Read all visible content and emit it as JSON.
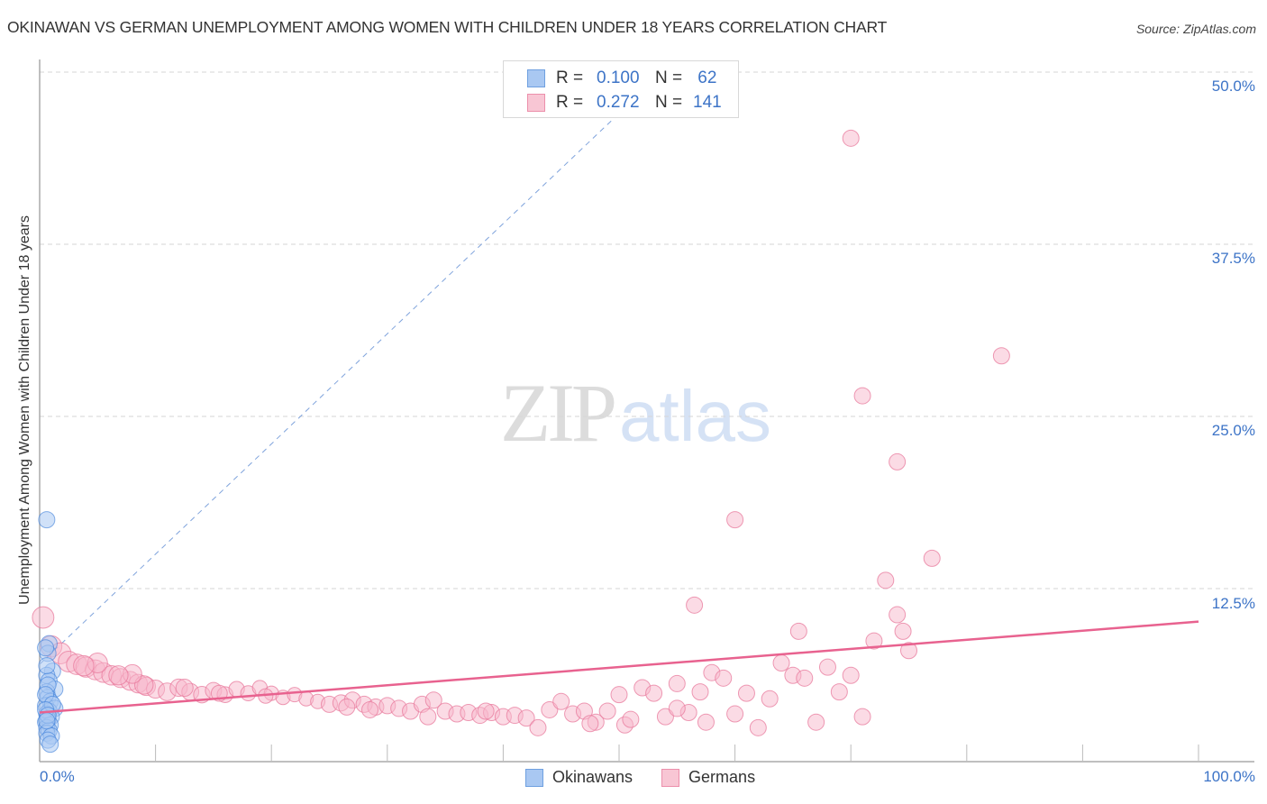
{
  "header": {
    "title": "OKINAWAN VS GERMAN UNEMPLOYMENT AMONG WOMEN WITH CHILDREN UNDER 18 YEARS CORRELATION CHART",
    "source": "Source: ZipAtlas.com"
  },
  "watermark": {
    "zip": "ZIP",
    "atlas": "atlas"
  },
  "axes": {
    "ylabel": "Unemployment Among Women with Children Under 18 years",
    "yticks": [
      "50.0%",
      "37.5%",
      "25.0%",
      "12.5%"
    ],
    "xtick_left": "0.0%",
    "xtick_right": "100.0%"
  },
  "legend_top": {
    "rows": [
      {
        "r_label": "R =",
        "r_value": "0.100",
        "n_label": "N =",
        "n_value": " 62",
        "color": "#a9c8f2",
        "border": "#6fa0e0"
      },
      {
        "r_label": "R =",
        "r_value": "0.272",
        "n_label": "N =",
        "n_value": "141",
        "color": "#f8c6d4",
        "border": "#ec8fab"
      }
    ]
  },
  "legend_bottom": {
    "items": [
      {
        "label": "Okinawans",
        "color": "#a9c8f2",
        "border": "#6fa0e0"
      },
      {
        "label": "Germans",
        "color": "#f8c6d4",
        "border": "#ec8fab"
      }
    ]
  },
  "colors": {
    "okinawan_fill": "#a9c8f2",
    "okinawan_stroke": "#3b7dd8",
    "german_fill": "#f7b8cb",
    "german_stroke": "#e87a9c",
    "german_trend": "#e8628f",
    "okinawan_trend": "#7fa3dc",
    "tick_label": "#3d74c7"
  },
  "chart_data": {
    "type": "scatter",
    "title": "OKINAWAN VS GERMAN UNEMPLOYMENT AMONG WOMEN WITH CHILDREN UNDER 18 YEARS CORRELATION CHART",
    "xlabel": "",
    "ylabel": "Unemployment Among Women with Children Under 18 years",
    "xlim": [
      0,
      100
    ],
    "ylim": [
      0,
      50
    ],
    "yticks": [
      12.5,
      25.0,
      37.5,
      50.0
    ],
    "grid": "horizontal dashed",
    "legend_position": "top-center and bottom-center",
    "series": [
      {
        "name": "Okinawans",
        "R": 0.1,
        "N": 62,
        "trend": {
          "x": [
            0,
            50
          ],
          "y": [
            7.0,
            47.0
          ],
          "style": "dashed"
        },
        "points": [
          [
            0.3,
            17.5
          ],
          [
            0.5,
            8.5
          ],
          [
            0.4,
            7.8
          ],
          [
            0.8,
            6.5
          ],
          [
            0.3,
            6.2
          ],
          [
            0.5,
            5.8
          ],
          [
            1.0,
            5.2
          ],
          [
            0.3,
            5.0
          ],
          [
            0.4,
            4.6
          ],
          [
            0.6,
            4.3
          ],
          [
            0.2,
            4.0
          ],
          [
            1.0,
            3.8
          ],
          [
            0.5,
            3.6
          ],
          [
            0.3,
            3.4
          ],
          [
            0.7,
            3.2
          ],
          [
            0.4,
            3.0
          ],
          [
            0.2,
            2.8
          ],
          [
            0.6,
            2.6
          ],
          [
            0.3,
            2.4
          ],
          [
            0.5,
            2.2
          ],
          [
            0.3,
            2.0
          ],
          [
            0.7,
            1.8
          ],
          [
            0.4,
            1.5
          ],
          [
            0.6,
            1.2
          ],
          [
            0.2,
            8.2
          ],
          [
            0.3,
            6.9
          ],
          [
            0.4,
            5.5
          ],
          [
            0.2,
            4.8
          ],
          [
            0.8,
            4.1
          ],
          [
            0.2,
            3.7
          ],
          [
            0.4,
            3.3
          ],
          [
            0.3,
            2.9
          ]
        ]
      },
      {
        "name": "Germans",
        "R": 0.272,
        "N": 141,
        "trend": {
          "x": [
            0,
            100
          ],
          "y": [
            3.5,
            10.1
          ],
          "style": "solid"
        },
        "points": [
          [
            0.3,
            10.4
          ],
          [
            1.0,
            8.3
          ],
          [
            1.8,
            7.8
          ],
          [
            2.5,
            7.2
          ],
          [
            3.2,
            7.0
          ],
          [
            4.0,
            6.8
          ],
          [
            4.8,
            6.6
          ],
          [
            5.5,
            6.4
          ],
          [
            6.2,
            6.2
          ],
          [
            7.0,
            6.0
          ],
          [
            7.8,
            5.8
          ],
          [
            8.5,
            5.6
          ],
          [
            9.2,
            5.4
          ],
          [
            10.0,
            5.2
          ],
          [
            11.0,
            5.0
          ],
          [
            12.0,
            5.3
          ],
          [
            13.0,
            5.0
          ],
          [
            14.0,
            4.8
          ],
          [
            15.0,
            5.1
          ],
          [
            16.0,
            4.8
          ],
          [
            17.0,
            5.2
          ],
          [
            18.0,
            4.9
          ],
          [
            19.0,
            5.3
          ],
          [
            20.0,
            4.9
          ],
          [
            21.0,
            4.6
          ],
          [
            22.0,
            4.8
          ],
          [
            23.0,
            4.5
          ],
          [
            24.0,
            4.3
          ],
          [
            25.0,
            4.1
          ],
          [
            26.0,
            4.2
          ],
          [
            27.0,
            4.4
          ],
          [
            28.0,
            4.1
          ],
          [
            29.0,
            3.9
          ],
          [
            30.0,
            4.0
          ],
          [
            31.0,
            3.8
          ],
          [
            32.0,
            3.6
          ],
          [
            33.0,
            4.1
          ],
          [
            34.0,
            4.4
          ],
          [
            35.0,
            3.6
          ],
          [
            36.0,
            3.4
          ],
          [
            37.0,
            3.5
          ],
          [
            38.0,
            3.3
          ],
          [
            39.0,
            3.5
          ],
          [
            40.0,
            3.2
          ],
          [
            41.0,
            3.3
          ],
          [
            42.0,
            3.1
          ],
          [
            43.0,
            2.4
          ],
          [
            44.0,
            3.7
          ],
          [
            45.0,
            4.3
          ],
          [
            46.0,
            3.4
          ],
          [
            47.0,
            3.6
          ],
          [
            48.0,
            2.8
          ],
          [
            49.0,
            3.6
          ],
          [
            50.0,
            4.8
          ],
          [
            50.5,
            2.6
          ],
          [
            51.0,
            3.0
          ],
          [
            52.0,
            5.3
          ],
          [
            53.0,
            4.9
          ],
          [
            54.0,
            3.2
          ],
          [
            55.0,
            5.6
          ],
          [
            56.0,
            3.5
          ],
          [
            57.0,
            5.0
          ],
          [
            57.5,
            2.8
          ],
          [
            58.0,
            6.4
          ],
          [
            59.0,
            6.0
          ],
          [
            60.0,
            3.4
          ],
          [
            61.0,
            4.9
          ],
          [
            62.0,
            2.4
          ],
          [
            63.0,
            4.5
          ],
          [
            64.0,
            7.1
          ],
          [
            65.0,
            6.2
          ],
          [
            66.0,
            6.0
          ],
          [
            67.0,
            2.8
          ],
          [
            68.0,
            6.8
          ],
          [
            69.0,
            5.0
          ],
          [
            70.0,
            6.2
          ],
          [
            71.0,
            3.2
          ],
          [
            72.0,
            8.7
          ],
          [
            75.0,
            8.0
          ],
          [
            74.0,
            10.6
          ],
          [
            73.0,
            13.1
          ],
          [
            56.5,
            11.3
          ],
          [
            74.5,
            9.4
          ],
          [
            65.5,
            9.4
          ],
          [
            60.0,
            17.5
          ],
          [
            71.0,
            26.5
          ],
          [
            70.0,
            45.2
          ],
          [
            83.0,
            29.4
          ],
          [
            74.0,
            21.7
          ],
          [
            77.0,
            14.7
          ],
          [
            55.0,
            3.8
          ],
          [
            47.5,
            2.7
          ],
          [
            38.5,
            3.6
          ],
          [
            33.5,
            3.2
          ],
          [
            28.5,
            3.7
          ],
          [
            26.5,
            3.9
          ],
          [
            19.5,
            4.7
          ],
          [
            15.5,
            4.9
          ],
          [
            12.5,
            5.3
          ],
          [
            9.0,
            5.5
          ],
          [
            8.0,
            6.3
          ],
          [
            6.8,
            6.2
          ],
          [
            5.0,
            7.1
          ],
          [
            3.8,
            6.9
          ]
        ]
      }
    ]
  }
}
